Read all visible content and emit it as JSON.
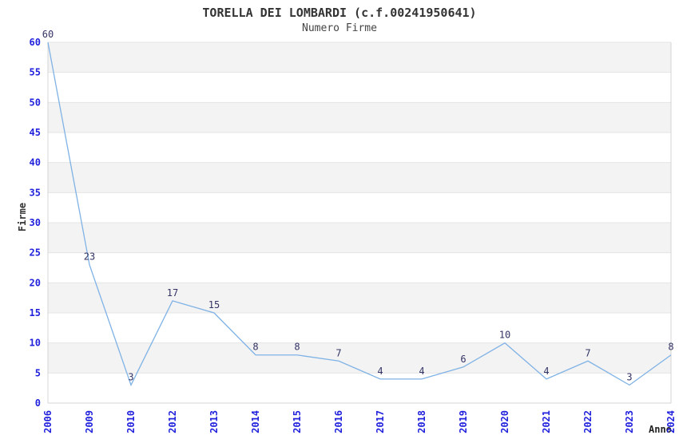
{
  "header": {
    "title": "TORELLA DEI LOMBARDI (c.f.00241950641)",
    "subtitle": "Numero Firme"
  },
  "chart_data": {
    "type": "line",
    "title": "TORELLA DEI LOMBARDI (c.f.00241950641)",
    "subtitle": "Numero Firme",
    "xlabel": "Anno",
    "ylabel": "Firme",
    "categories": [
      "2006",
      "2009",
      "2010",
      "2012",
      "2013",
      "2014",
      "2015",
      "2016",
      "2017",
      "2018",
      "2019",
      "2020",
      "2021",
      "2022",
      "2023",
      "2024"
    ],
    "values": [
      60,
      23,
      3,
      17,
      15,
      8,
      8,
      7,
      4,
      4,
      6,
      10,
      4,
      7,
      3,
      8
    ],
    "yticks": [
      0,
      5,
      10,
      15,
      20,
      25,
      30,
      35,
      40,
      45,
      50,
      55,
      60
    ],
    "ylim": [
      0,
      60
    ],
    "ytick_step": 5,
    "grid": "horizontal alternating bands every 5 units",
    "legend": "none",
    "data_labels": "shown above each point",
    "colors": {
      "line": "#7fb2e5",
      "tick_label": "#2222dd",
      "data_label": "#333366",
      "band_gray": "#f3f3f3",
      "band_white": "#ffffff",
      "gridline": "#e4e4e4",
      "plot_border": "#d4d4d4",
      "title_text": "#333333"
    }
  }
}
